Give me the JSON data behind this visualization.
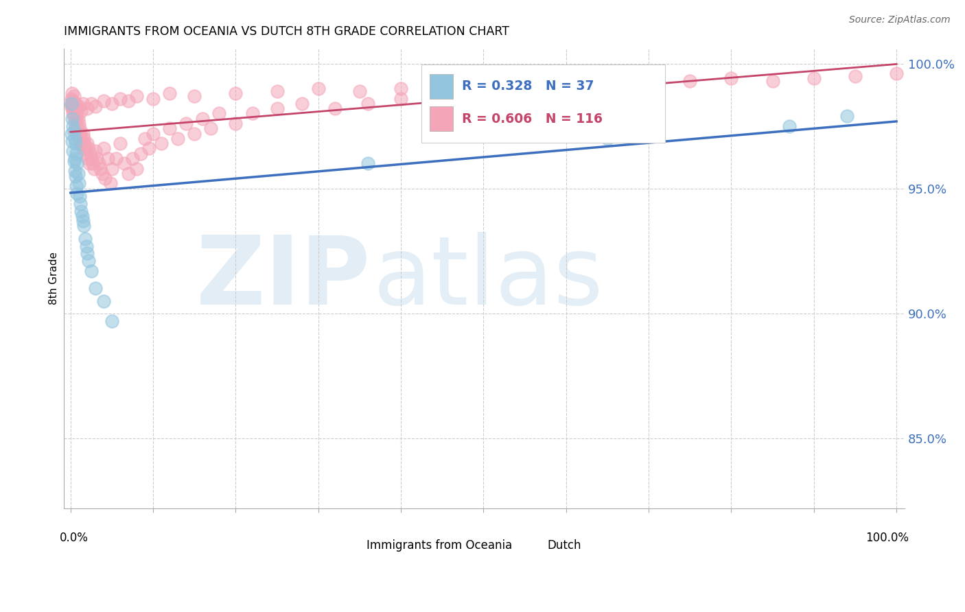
{
  "title": "IMMIGRANTS FROM OCEANIA VS DUTCH 8TH GRADE CORRELATION CHART",
  "source": "Source: ZipAtlas.com",
  "ylabel": "8th Grade",
  "blue_R": 0.328,
  "blue_N": 37,
  "pink_R": 0.606,
  "pink_N": 116,
  "blue_marker_color": "#92C5DE",
  "pink_marker_color": "#F4A6B8",
  "blue_line_color": "#3D6FBF",
  "pink_line_color": "#C44569",
  "legend_blue_label": "Immigrants from Oceania",
  "legend_pink_label": "Dutch",
  "ylim_min": 0.822,
  "ylim_max": 1.006,
  "xlim_min": -0.008,
  "xlim_max": 1.01,
  "ytick_vals": [
    0.85,
    0.9,
    0.95,
    1.0
  ],
  "ytick_labels": [
    "85.0%",
    "90.0%",
    "95.0%",
    "100.0%"
  ],
  "blue_x": [
    0.001,
    0.001,
    0.002,
    0.002,
    0.003,
    0.003,
    0.004,
    0.004,
    0.005,
    0.005,
    0.005,
    0.006,
    0.006,
    0.007,
    0.007,
    0.008,
    0.008,
    0.009,
    0.01,
    0.011,
    0.012,
    0.013,
    0.014,
    0.015,
    0.016,
    0.018,
    0.019,
    0.02,
    0.022,
    0.025,
    0.03,
    0.04,
    0.05,
    0.36,
    0.65,
    0.87,
    0.94
  ],
  "blue_y": [
    0.984,
    0.972,
    0.978,
    0.969,
    0.975,
    0.965,
    0.973,
    0.961,
    0.97,
    0.962,
    0.957,
    0.968,
    0.955,
    0.964,
    0.951,
    0.96,
    0.948,
    0.956,
    0.952,
    0.947,
    0.944,
    0.941,
    0.939,
    0.937,
    0.935,
    0.93,
    0.927,
    0.924,
    0.921,
    0.917,
    0.91,
    0.905,
    0.897,
    0.96,
    0.97,
    0.975,
    0.979
  ],
  "pink_x": [
    0.001,
    0.001,
    0.002,
    0.002,
    0.003,
    0.003,
    0.004,
    0.004,
    0.004,
    0.005,
    0.005,
    0.006,
    0.006,
    0.007,
    0.007,
    0.008,
    0.008,
    0.009,
    0.009,
    0.01,
    0.01,
    0.011,
    0.011,
    0.012,
    0.013,
    0.014,
    0.015,
    0.015,
    0.016,
    0.017,
    0.018,
    0.019,
    0.02,
    0.021,
    0.022,
    0.023,
    0.024,
    0.025,
    0.027,
    0.028,
    0.03,
    0.032,
    0.034,
    0.036,
    0.038,
    0.04,
    0.042,
    0.045,
    0.048,
    0.05,
    0.055,
    0.06,
    0.065,
    0.07,
    0.075,
    0.08,
    0.085,
    0.09,
    0.095,
    0.1,
    0.11,
    0.12,
    0.13,
    0.14,
    0.15,
    0.16,
    0.17,
    0.18,
    0.2,
    0.22,
    0.25,
    0.28,
    0.32,
    0.36,
    0.4,
    0.45,
    0.5,
    0.55,
    0.6,
    0.65,
    0.001,
    0.002,
    0.003,
    0.005,
    0.007,
    0.01,
    0.013,
    0.015,
    0.02,
    0.025,
    0.03,
    0.04,
    0.05,
    0.06,
    0.07,
    0.08,
    0.1,
    0.12,
    0.15,
    0.2,
    0.25,
    0.3,
    0.35,
    0.4,
    0.45,
    0.5,
    0.55,
    0.6,
    0.65,
    0.7,
    0.75,
    0.8,
    0.85,
    0.9,
    0.95,
    1.0
  ],
  "pink_y": [
    0.986,
    0.983,
    0.988,
    0.982,
    0.985,
    0.98,
    0.983,
    0.979,
    0.987,
    0.981,
    0.977,
    0.984,
    0.975,
    0.982,
    0.978,
    0.98,
    0.974,
    0.978,
    0.972,
    0.976,
    0.97,
    0.974,
    0.968,
    0.972,
    0.97,
    0.968,
    0.972,
    0.966,
    0.97,
    0.968,
    0.966,
    0.964,
    0.968,
    0.962,
    0.966,
    0.96,
    0.964,
    0.962,
    0.96,
    0.958,
    0.965,
    0.962,
    0.96,
    0.958,
    0.956,
    0.966,
    0.954,
    0.962,
    0.952,
    0.958,
    0.962,
    0.968,
    0.96,
    0.956,
    0.962,
    0.958,
    0.964,
    0.97,
    0.966,
    0.972,
    0.968,
    0.974,
    0.97,
    0.976,
    0.972,
    0.978,
    0.974,
    0.98,
    0.976,
    0.98,
    0.982,
    0.984,
    0.982,
    0.984,
    0.986,
    0.984,
    0.986,
    0.988,
    0.984,
    0.986,
    0.984,
    0.985,
    0.983,
    0.984,
    0.982,
    0.983,
    0.981,
    0.984,
    0.982,
    0.984,
    0.983,
    0.985,
    0.984,
    0.986,
    0.985,
    0.987,
    0.986,
    0.988,
    0.987,
    0.988,
    0.989,
    0.99,
    0.989,
    0.99,
    0.991,
    0.992,
    0.991,
    0.992,
    0.993,
    0.994,
    0.993,
    0.994,
    0.993,
    0.994,
    0.995,
    0.996
  ]
}
